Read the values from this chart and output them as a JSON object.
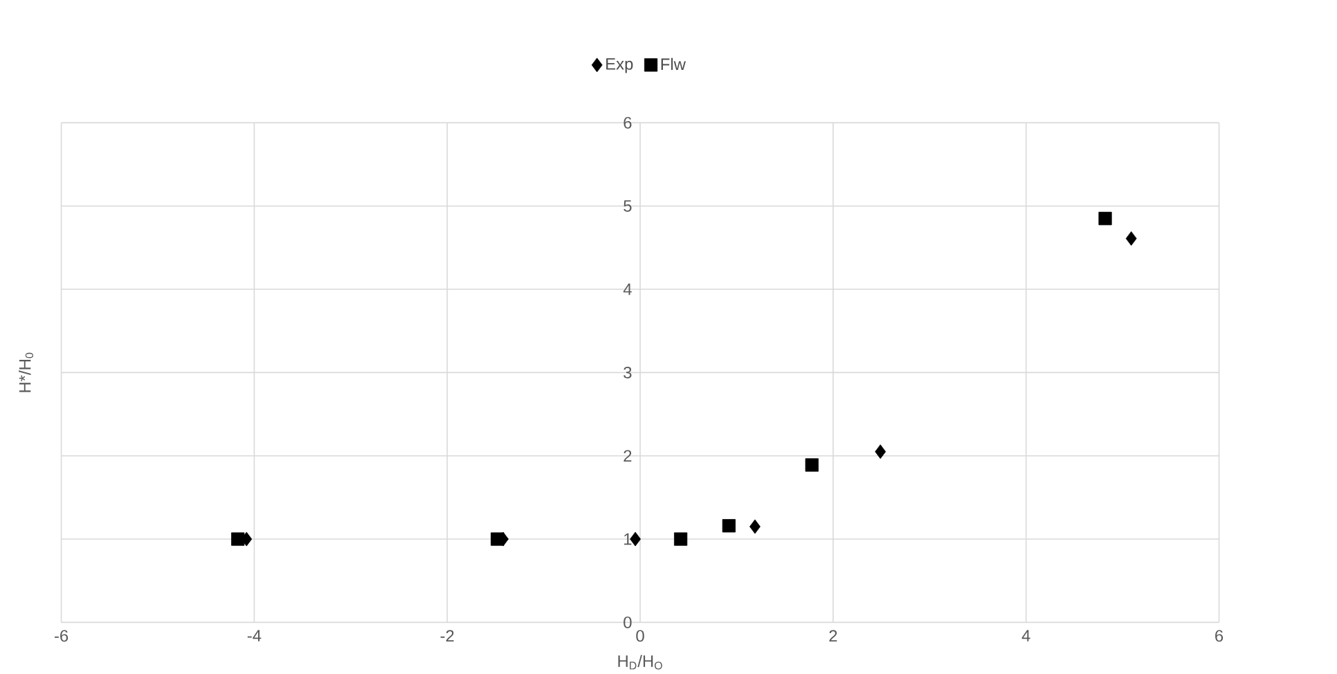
{
  "chart_data": {
    "type": "scatter",
    "xlabel": "H$_{D}$/H$_{O}$",
    "ylabel": "H*/H$_{0}$",
    "xlim": [
      -6,
      6
    ],
    "ylim": [
      0,
      6
    ],
    "xticks": [
      -6,
      -4,
      -2,
      0,
      2,
      4,
      6
    ],
    "yticks": [
      0,
      1,
      2,
      3,
      4,
      5,
      6
    ],
    "grid": true,
    "legend": "top",
    "series": [
      {
        "name": "Exp",
        "color": "#000000",
        "marker": "diamond",
        "x": [
          -4.08,
          -1.42,
          -0.05,
          1.19,
          2.49,
          5.09
        ],
        "values": [
          1,
          1,
          1,
          1.15,
          2.05,
          4.61
        ]
      },
      {
        "name": "Flw",
        "color": "#000000",
        "marker": "square",
        "x": [
          -4.17,
          -1.48,
          0.42,
          0.92,
          1.78,
          4.82
        ],
        "values": [
          1,
          1,
          1,
          1.16,
          1.89,
          4.85
        ]
      }
    ]
  }
}
